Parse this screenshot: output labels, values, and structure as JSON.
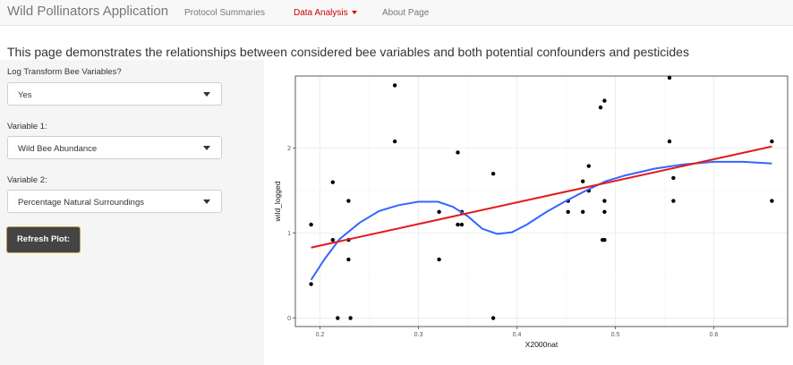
{
  "navbar": {
    "brand": "Wild Pollinators Application",
    "items": [
      {
        "label": "Protocol Summaries",
        "active": false
      },
      {
        "label": "Data Analysis",
        "active": true
      },
      {
        "label": "About Page",
        "active": false
      }
    ]
  },
  "page": {
    "heading": "This page demonstrates the relationships between considered bee variables and both potential confounders and pesticides"
  },
  "sidebar": {
    "log_transform": {
      "label": "Log Transform Bee Variables?",
      "value": "Yes"
    },
    "variable1": {
      "label": "Variable 1:",
      "value": "Wild Bee Abundance"
    },
    "variable2": {
      "label": "Variable 2:",
      "value": "Percentage Natural Surroundings"
    },
    "refresh_button": "Refresh Plot:"
  },
  "colors": {
    "accent": "#cc0000",
    "smooth_line": "#3366ff",
    "fit_line": "#e31a1c",
    "button_bg": "#444444",
    "button_border": "#c8a150"
  },
  "chart_data": {
    "type": "scatter",
    "xlabel": "X2000nat",
    "ylabel": "wild_logged",
    "xlim": [
      0.175,
      0.675
    ],
    "ylim": [
      -0.1,
      2.85
    ],
    "x_ticks": [
      {
        "value": 0.2,
        "label": "0.2"
      },
      {
        "value": 0.3,
        "label": "0.3"
      },
      {
        "value": 0.4,
        "label": "0.4"
      },
      {
        "value": 0.5,
        "label": "0.5"
      },
      {
        "value": 0.6,
        "label": "0.6"
      }
    ],
    "y_ticks": [
      {
        "value": 0,
        "label": "0"
      },
      {
        "value": 1,
        "label": "1"
      },
      {
        "value": 2,
        "label": "2"
      }
    ],
    "grid": true,
    "points": [
      [
        0.191,
        1.1
      ],
      [
        0.191,
        0.4
      ],
      [
        0.213,
        1.6
      ],
      [
        0.213,
        0.92
      ],
      [
        0.218,
        0.0
      ],
      [
        0.229,
        1.38
      ],
      [
        0.229,
        0.92
      ],
      [
        0.229,
        0.69
      ],
      [
        0.231,
        0.0
      ],
      [
        0.276,
        2.74
      ],
      [
        0.276,
        2.08
      ],
      [
        0.321,
        1.25
      ],
      [
        0.321,
        0.69
      ],
      [
        0.34,
        1.95
      ],
      [
        0.34,
        1.1
      ],
      [
        0.344,
        1.25
      ],
      [
        0.344,
        1.1
      ],
      [
        0.376,
        1.7
      ],
      [
        0.376,
        0.0
      ],
      [
        0.452,
        1.38
      ],
      [
        0.452,
        1.25
      ],
      [
        0.467,
        1.61
      ],
      [
        0.467,
        1.25
      ],
      [
        0.473,
        1.79
      ],
      [
        0.473,
        1.5
      ],
      [
        0.485,
        2.48
      ],
      [
        0.487,
        0.92
      ],
      [
        0.489,
        2.56
      ],
      [
        0.489,
        1.38
      ],
      [
        0.489,
        1.25
      ],
      [
        0.489,
        0.92
      ],
      [
        0.555,
        2.83
      ],
      [
        0.555,
        2.08
      ],
      [
        0.559,
        1.38
      ],
      [
        0.559,
        1.65
      ],
      [
        0.659,
        2.08
      ],
      [
        0.659,
        1.38
      ]
    ],
    "smooth_line": [
      [
        0.191,
        0.45
      ],
      [
        0.205,
        0.7
      ],
      [
        0.22,
        0.93
      ],
      [
        0.24,
        1.12
      ],
      [
        0.26,
        1.26
      ],
      [
        0.28,
        1.33
      ],
      [
        0.3,
        1.37
      ],
      [
        0.32,
        1.37
      ],
      [
        0.335,
        1.31
      ],
      [
        0.35,
        1.2
      ],
      [
        0.365,
        1.05
      ],
      [
        0.38,
        0.99
      ],
      [
        0.395,
        1.01
      ],
      [
        0.41,
        1.1
      ],
      [
        0.43,
        1.25
      ],
      [
        0.45,
        1.38
      ],
      [
        0.47,
        1.5
      ],
      [
        0.49,
        1.61
      ],
      [
        0.51,
        1.68
      ],
      [
        0.54,
        1.76
      ],
      [
        0.57,
        1.81
      ],
      [
        0.6,
        1.84
      ],
      [
        0.63,
        1.84
      ],
      [
        0.659,
        1.82
      ]
    ],
    "fit_line": [
      [
        0.191,
        0.83
      ],
      [
        0.659,
        2.02
      ]
    ]
  }
}
